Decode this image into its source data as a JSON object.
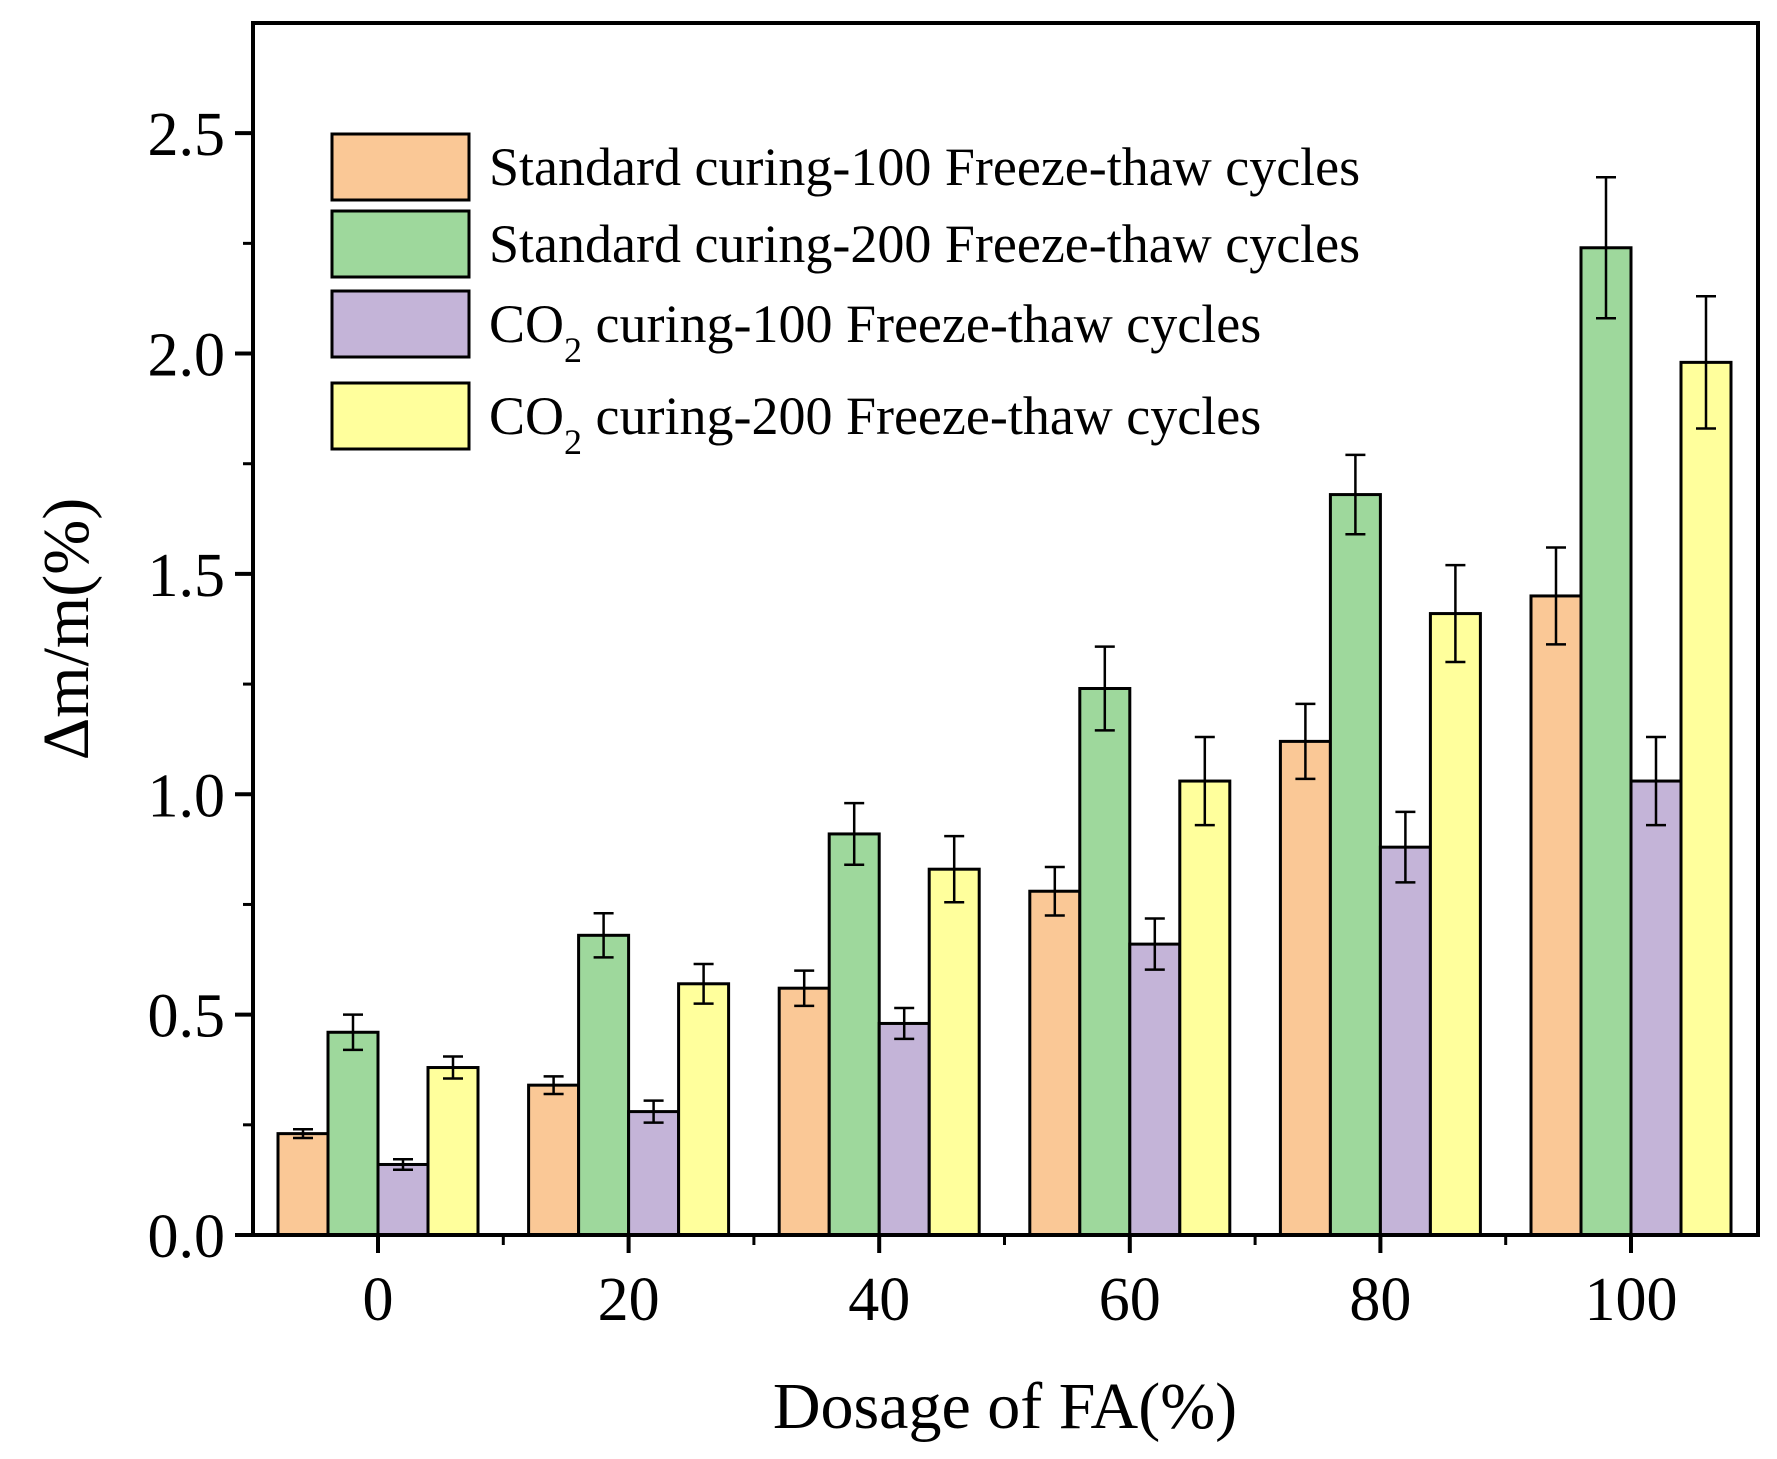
{
  "chart_data": {
    "type": "bar",
    "xlabel": "Dosage of FA(%)",
    "ylabel": "Δm/m(%)",
    "ylim": [
      0,
      2.75
    ],
    "yticks": [
      "0.0",
      "0.5",
      "1.0",
      "1.5",
      "2.0",
      "2.5"
    ],
    "categories": [
      "0",
      "20",
      "40",
      "60",
      "80",
      "100"
    ],
    "legend_position": "top-left",
    "series": [
      {
        "name": "Standard curing-100 Freeze-thaw cycles",
        "legend_main": "Standard curing-100 Freeze-thaw cycles",
        "legend_sub": "",
        "legend_rest": "",
        "color": "#FAC896",
        "values": [
          0.23,
          0.34,
          0.56,
          0.78,
          1.12,
          1.45
        ],
        "errors": [
          0.01,
          0.02,
          0.04,
          0.055,
          0.085,
          0.11
        ]
      },
      {
        "name": "Standard curing-200 Freeze-thaw cycles",
        "legend_main": "Standard curing-200 Freeze-thaw cycles",
        "legend_sub": "",
        "legend_rest": "",
        "color": "#9ED89C",
        "values": [
          0.46,
          0.68,
          0.91,
          1.24,
          1.68,
          2.24
        ],
        "errors": [
          0.04,
          0.05,
          0.07,
          0.095,
          0.09,
          0.16
        ]
      },
      {
        "name": "CO2 curing-100 Freeze-thaw cycles",
        "legend_main": "CO",
        "legend_sub": "2",
        "legend_rest": " curing-100 Freeze-thaw cycles",
        "color": "#C4B4D8",
        "values": [
          0.16,
          0.28,
          0.48,
          0.66,
          0.88,
          1.03
        ],
        "errors": [
          0.012,
          0.025,
          0.035,
          0.058,
          0.08,
          0.1
        ]
      },
      {
        "name": "CO2 curing-200 Freeze-thaw cycles",
        "legend_main": "CO",
        "legend_sub": "2",
        "legend_rest": " curing-200 Freeze-thaw cycles",
        "color": "#FFFF9C",
        "values": [
          0.38,
          0.57,
          0.83,
          1.03,
          1.41,
          1.98
        ],
        "errors": [
          0.025,
          0.045,
          0.075,
          0.1,
          0.11,
          0.15
        ]
      }
    ]
  }
}
